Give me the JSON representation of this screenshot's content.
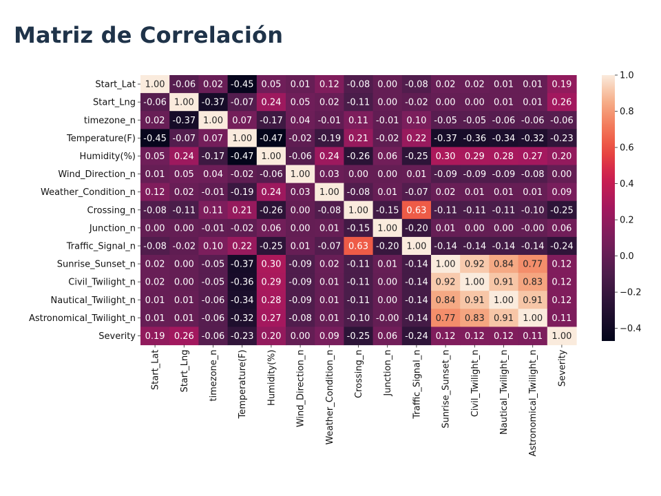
{
  "title": "Matriz de Correlación",
  "chart_data": {
    "type": "heatmap",
    "title": "Matriz de Correlación",
    "labels": [
      "Start_Lat",
      "Start_Lng",
      "timezone_n",
      "Temperature(F)",
      "Humidity(%)",
      "Wind_Direction_n",
      "Weather_Condition_n",
      "Crossing_n",
      "Junction_n",
      "Traffic_Signal_n",
      "Sunrise_Sunset_n",
      "Civil_Twilight_n",
      "Nautical_Twilight_n",
      "Astronomical_Twilight_n",
      "Severity"
    ],
    "matrix": [
      [
        1.0,
        -0.06,
        0.02,
        -0.45,
        0.05,
        0.01,
        0.12,
        -0.08,
        0.0,
        -0.08,
        0.02,
        0.02,
        0.01,
        0.01,
        0.19
      ],
      [
        -0.06,
        1.0,
        -0.37,
        -0.07,
        0.24,
        0.05,
        0.02,
        -0.11,
        0.0,
        -0.02,
        0.0,
        0.0,
        0.01,
        0.01,
        0.26
      ],
      [
        0.02,
        -0.37,
        1.0,
        0.07,
        -0.17,
        0.04,
        -0.01,
        0.11,
        -0.01,
        0.1,
        -0.05,
        -0.05,
        -0.06,
        -0.06,
        -0.06
      ],
      [
        -0.45,
        -0.07,
        0.07,
        1.0,
        -0.47,
        -0.02,
        -0.19,
        0.21,
        -0.02,
        0.22,
        -0.37,
        -0.36,
        -0.34,
        -0.32,
        -0.23
      ],
      [
        0.05,
        0.24,
        -0.17,
        -0.47,
        1.0,
        -0.06,
        0.24,
        -0.26,
        0.06,
        -0.25,
        0.3,
        0.29,
        0.28,
        0.27,
        0.2
      ],
      [
        0.01,
        0.05,
        0.04,
        -0.02,
        -0.06,
        1.0,
        0.03,
        0.0,
        0.0,
        0.01,
        -0.09,
        -0.09,
        -0.09,
        -0.08,
        0.0
      ],
      [
        0.12,
        0.02,
        -0.01,
        -0.19,
        0.24,
        0.03,
        1.0,
        -0.08,
        0.01,
        -0.07,
        0.02,
        0.01,
        0.01,
        0.01,
        0.09
      ],
      [
        -0.08,
        -0.11,
        0.11,
        0.21,
        -0.26,
        0.0,
        -0.08,
        1.0,
        -0.15,
        0.63,
        -0.11,
        -0.11,
        -0.11,
        -0.1,
        -0.25
      ],
      [
        0.0,
        0.0,
        -0.01,
        -0.02,
        0.06,
        0.0,
        0.01,
        -0.15,
        1.0,
        -0.2,
        0.01,
        0.0,
        0.0,
        -0.0,
        0.06
      ],
      [
        -0.08,
        -0.02,
        0.1,
        0.22,
        -0.25,
        0.01,
        -0.07,
        0.63,
        -0.2,
        1.0,
        -0.14,
        -0.14,
        -0.14,
        -0.14,
        -0.24
      ],
      [
        0.02,
        0.0,
        -0.05,
        -0.37,
        0.3,
        -0.09,
        0.02,
        -0.11,
        0.01,
        -0.14,
        1.0,
        0.92,
        0.84,
        0.77,
        0.12
      ],
      [
        0.02,
        0.0,
        -0.05,
        -0.36,
        0.29,
        -0.09,
        0.01,
        -0.11,
        0.0,
        -0.14,
        0.92,
        1.0,
        0.91,
        0.83,
        0.12
      ],
      [
        0.01,
        0.01,
        -0.06,
        -0.34,
        0.28,
        -0.09,
        0.01,
        -0.11,
        0.0,
        -0.14,
        0.84,
        0.91,
        1.0,
        0.91,
        0.12
      ],
      [
        0.01,
        0.01,
        -0.06,
        -0.32,
        0.27,
        -0.08,
        0.01,
        -0.1,
        -0.0,
        -0.14,
        0.77,
        0.83,
        0.91,
        1.0,
        0.11
      ],
      [
        0.19,
        0.26,
        -0.06,
        -0.23,
        0.2,
        0.0,
        0.09,
        -0.25,
        0.06,
        -0.24,
        0.12,
        0.12,
        0.12,
        0.11,
        1.0
      ]
    ],
    "display": [
      [
        "1.00",
        "-0.06",
        "0.02",
        "-0.45",
        "0.05",
        "0.01",
        "0.12",
        "-0.08",
        "0.00",
        "-0.08",
        "0.02",
        "0.02",
        "0.01",
        "0.01",
        "0.19"
      ],
      [
        "-0.06",
        "1.00",
        "-0.37",
        "-0.07",
        "0.24",
        "0.05",
        "0.02",
        "-0.11",
        "0.00",
        "-0.02",
        "0.00",
        "0.00",
        "0.01",
        "0.01",
        "0.26"
      ],
      [
        "0.02",
        "-0.37",
        "1.00",
        "0.07",
        "-0.17",
        "0.04",
        "-0.01",
        "0.11",
        "-0.01",
        "0.10",
        "-0.05",
        "-0.05",
        "-0.06",
        "-0.06",
        "-0.06"
      ],
      [
        "-0.45",
        "-0.07",
        "0.07",
        "1.00",
        "-0.47",
        "-0.02",
        "-0.19",
        "0.21",
        "-0.02",
        "0.22",
        "-0.37",
        "-0.36",
        "-0.34",
        "-0.32",
        "-0.23"
      ],
      [
        "0.05",
        "0.24",
        "-0.17",
        "-0.47",
        "1.00",
        "-0.06",
        "0.24",
        "-0.26",
        "0.06",
        "-0.25",
        "0.30",
        "0.29",
        "0.28",
        "0.27",
        "0.20"
      ],
      [
        "0.01",
        "0.05",
        "0.04",
        "-0.02",
        "-0.06",
        "1.00",
        "0.03",
        "0.00",
        "0.00",
        "0.01",
        "-0.09",
        "-0.09",
        "-0.09",
        "-0.08",
        "0.00"
      ],
      [
        "0.12",
        "0.02",
        "-0.01",
        "-0.19",
        "0.24",
        "0.03",
        "1.00",
        "-0.08",
        "0.01",
        "-0.07",
        "0.02",
        "0.01",
        "0.01",
        "0.01",
        "0.09"
      ],
      [
        "-0.08",
        "-0.11",
        "0.11",
        "0.21",
        "-0.26",
        "0.00",
        "-0.08",
        "1.00",
        "-0.15",
        "0.63",
        "-0.11",
        "-0.11",
        "-0.11",
        "-0.10",
        "-0.25"
      ],
      [
        "0.00",
        "0.00",
        "-0.01",
        "-0.02",
        "0.06",
        "0.00",
        "0.01",
        "-0.15",
        "1.00",
        "-0.20",
        "0.01",
        "0.00",
        "0.00",
        "-0.00",
        "0.06"
      ],
      [
        "-0.08",
        "-0.02",
        "0.10",
        "0.22",
        "-0.25",
        "0.01",
        "-0.07",
        "0.63",
        "-0.20",
        "1.00",
        "-0.14",
        "-0.14",
        "-0.14",
        "-0.14",
        "-0.24"
      ],
      [
        "0.02",
        "0.00",
        "-0.05",
        "-0.37",
        "0.30",
        "-0.09",
        "0.02",
        "-0.11",
        "0.01",
        "-0.14",
        "1.00",
        "0.92",
        "0.84",
        "0.77",
        "0.12"
      ],
      [
        "0.02",
        "0.00",
        "-0.05",
        "-0.36",
        "0.29",
        "-0.09",
        "0.01",
        "-0.11",
        "0.00",
        "-0.14",
        "0.92",
        "1.00",
        "0.91",
        "0.83",
        "0.12"
      ],
      [
        "0.01",
        "0.01",
        "-0.06",
        "-0.34",
        "0.28",
        "-0.09",
        "0.01",
        "-0.11",
        "0.00",
        "-0.14",
        "0.84",
        "0.91",
        "1.00",
        "0.91",
        "0.12"
      ],
      [
        "0.01",
        "0.01",
        "-0.06",
        "-0.32",
        "0.27",
        "-0.08",
        "0.01",
        "-0.10",
        "-0.00",
        "-0.14",
        "0.77",
        "0.83",
        "0.91",
        "1.00",
        "0.11"
      ],
      [
        "0.19",
        "0.26",
        "-0.06",
        "-0.23",
        "0.20",
        "0.00",
        "0.09",
        "-0.25",
        "0.06",
        "-0.24",
        "0.12",
        "0.12",
        "0.12",
        "0.11",
        "1.00"
      ]
    ],
    "colorbar": {
      "min": -0.47,
      "max": 1.0,
      "ticks": [
        1.0,
        0.8,
        0.6,
        0.4,
        0.2,
        0.0,
        -0.2,
        -0.4
      ],
      "tick_labels": [
        "1.0",
        "0.8",
        "0.6",
        "0.4",
        "0.2",
        "0.0",
        "−0.2",
        "−0.4"
      ]
    },
    "colormap": "rocket",
    "grid": false,
    "legend": "colorbar-right"
  }
}
